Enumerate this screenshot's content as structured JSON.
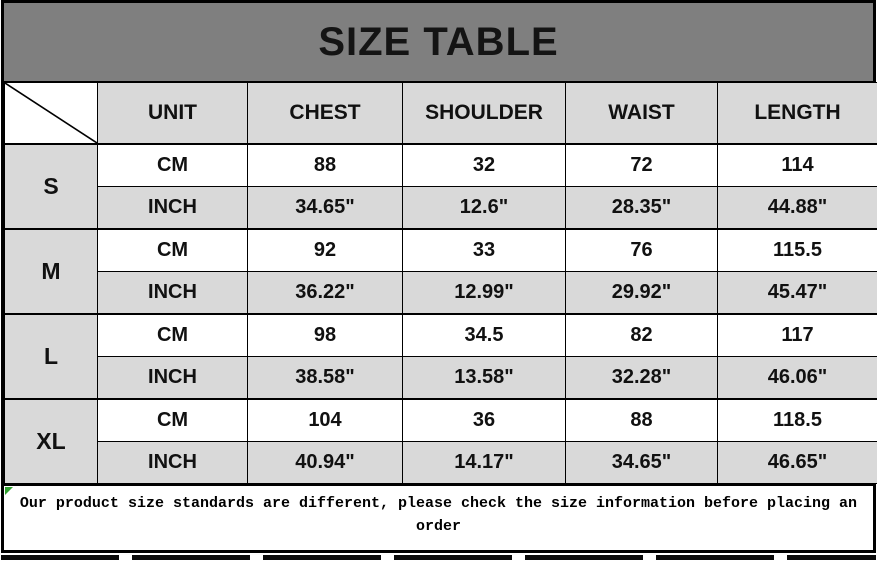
{
  "title": "SIZE TABLE",
  "colors": {
    "title_bg": "#7f7f7f",
    "shaded_cell_bg": "#d9d9d9",
    "cell_bg": "#ffffff",
    "border": "#000000",
    "corner_marker": "#2fa12f"
  },
  "header": {
    "columns": [
      "UNIT",
      "CHEST",
      "SHOULDER",
      "WAIST",
      "LENGTH"
    ]
  },
  "sizes": [
    {
      "label": "S",
      "rows": [
        [
          "CM",
          "88",
          "32",
          "72",
          "114"
        ],
        [
          "INCH",
          "34.65\"",
          "12.6\"",
          "28.35\"",
          "44.88\""
        ]
      ]
    },
    {
      "label": "M",
      "rows": [
        [
          "CM",
          "92",
          "33",
          "76",
          "115.5"
        ],
        [
          "INCH",
          "36.22\"",
          "12.99\"",
          "29.92\"",
          "45.47\""
        ]
      ]
    },
    {
      "label": "L",
      "rows": [
        [
          "CM",
          "98",
          "34.5",
          "82",
          "117"
        ],
        [
          "INCH",
          "38.58\"",
          "13.58\"",
          "32.28\"",
          "46.06\""
        ]
      ]
    },
    {
      "label": "XL",
      "rows": [
        [
          "CM",
          "104",
          "36",
          "88",
          "118.5"
        ],
        [
          "INCH",
          "40.94\"",
          "14.17\"",
          "34.65\"",
          "46.65\""
        ]
      ]
    }
  ],
  "note_line1": "Our product size standards are different, please check the size information before placing an",
  "note_line2": "order"
}
